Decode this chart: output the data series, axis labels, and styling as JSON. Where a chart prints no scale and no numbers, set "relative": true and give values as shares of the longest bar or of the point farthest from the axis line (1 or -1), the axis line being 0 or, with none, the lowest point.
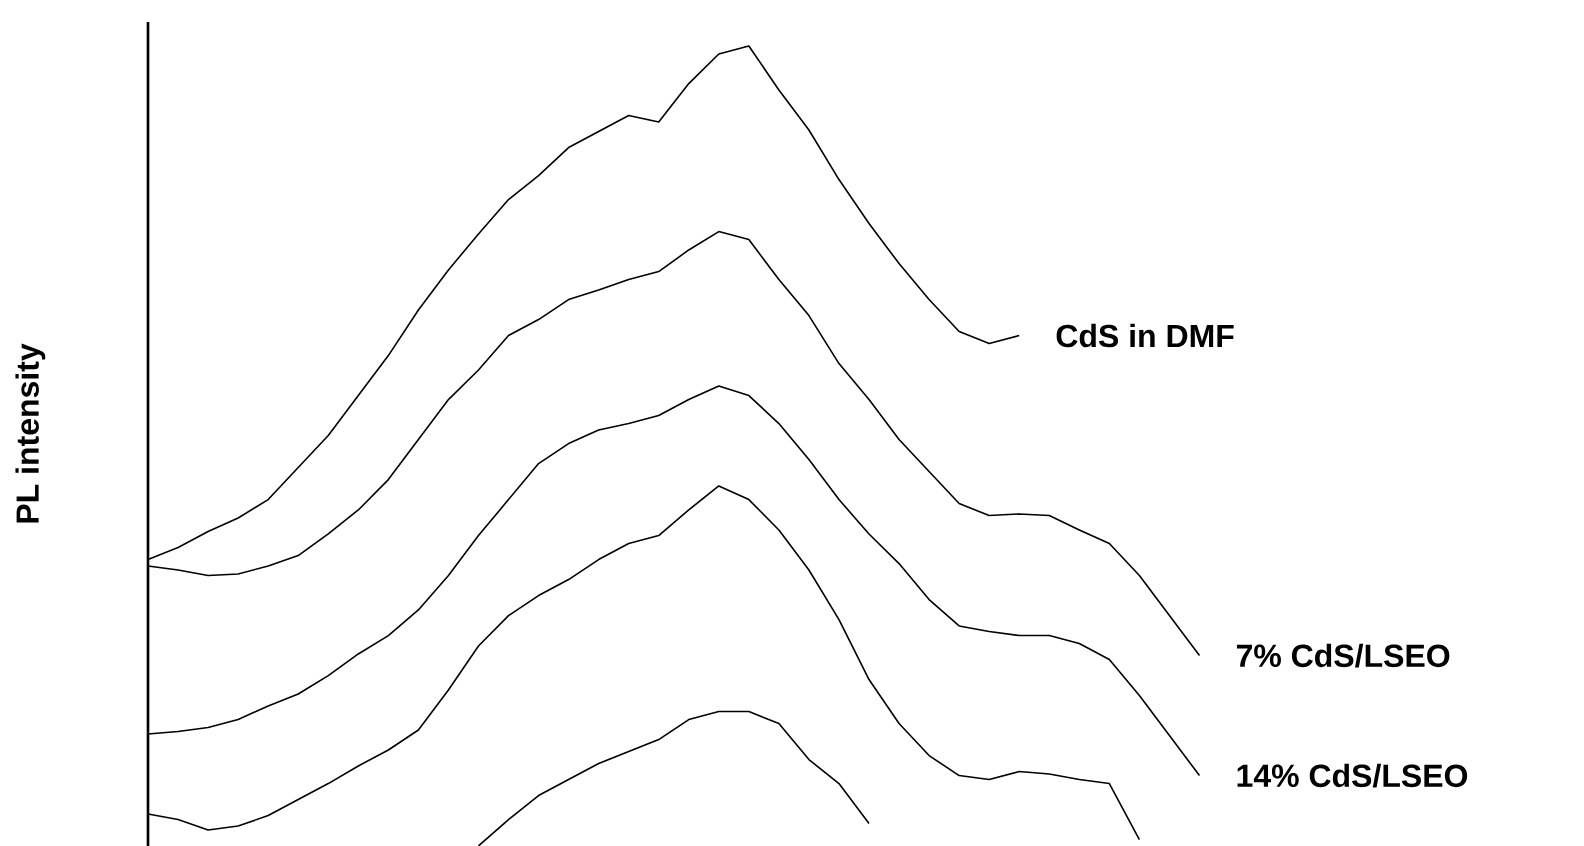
{
  "chart_data": {
    "type": "line",
    "ylabel": "PL intensity",
    "relative": true,
    "categories": [
      null,
      null,
      null,
      null,
      null,
      null,
      null,
      null,
      null,
      null,
      null,
      null,
      null,
      null,
      null,
      null,
      null,
      null,
      null,
      null,
      null,
      null,
      null,
      null,
      null,
      null,
      null,
      null,
      null,
      null,
      null,
      null,
      null,
      null,
      null,
      null
    ],
    "series": [
      {
        "name": "CdS in DMF",
        "color": "#000000",
        "values": [
          0.358,
          0.373,
          0.393,
          0.41,
          0.433,
          0.473,
          0.513,
          0.563,
          0.613,
          0.67,
          0.72,
          0.765,
          0.808,
          0.838,
          0.873,
          0.893,
          0.913,
          0.905,
          0.953,
          0.99,
          1,
          0.945,
          0.895,
          0.833,
          0.778,
          0.728,
          0.683,
          0.643,
          0.628,
          0.638,
          null,
          null,
          null,
          null,
          null,
          null
        ]
      },
      {
        "name": "7% CdS/LSEO",
        "color": "#000000",
        "values": [
          0.35,
          0.345,
          0.338,
          0.34,
          0.35,
          0.363,
          0.39,
          0.42,
          0.458,
          0.508,
          0.558,
          0.595,
          0.638,
          0.658,
          0.683,
          0.695,
          0.708,
          0.718,
          0.745,
          0.768,
          0.758,
          0.708,
          0.663,
          0.603,
          0.558,
          0.508,
          0.468,
          0.428,
          0.413,
          0.415,
          0.413,
          0.395,
          0.378,
          0.338,
          0.288,
          0.238
        ]
      },
      {
        "name": "14% CdS/LSEO",
        "color": "#000000",
        "values": [
          0.14,
          0.143,
          0.148,
          0.158,
          0.175,
          0.19,
          0.213,
          0.24,
          0.263,
          0.295,
          0.338,
          0.388,
          0.433,
          0.478,
          0.503,
          0.52,
          0.528,
          0.538,
          0.558,
          0.575,
          0.563,
          0.528,
          0.483,
          0.433,
          0.39,
          0.353,
          0.308,
          0.275,
          0.268,
          0.263,
          0.263,
          0.253,
          0.233,
          0.188,
          0.138,
          0.088
        ]
      },
      {
        "color": "#000000",
        "values": [
          0.04,
          0.033,
          0.02,
          0.025,
          0.038,
          0.058,
          0.078,
          0.1,
          0.12,
          0.145,
          0.195,
          0.25,
          0.288,
          0.313,
          0.333,
          0.358,
          0.378,
          0.388,
          0.42,
          0.45,
          0.433,
          0.395,
          0.345,
          0.283,
          0.208,
          0.153,
          0.113,
          0.088,
          0.083,
          0.093,
          0.09,
          0.083,
          0.078,
          0.008,
          null,
          null
        ]
      },
      {
        "color": "#000000",
        "values": [
          null,
          null,
          null,
          null,
          null,
          null,
          null,
          null,
          null,
          null,
          null,
          0,
          0.033,
          0.063,
          0.083,
          0.103,
          0.118,
          0.133,
          0.158,
          0.168,
          0.168,
          0.153,
          0.108,
          0.078,
          0.028,
          null,
          null,
          null,
          null,
          null,
          null,
          null,
          null,
          null,
          null,
          null
        ]
      }
    ]
  }
}
